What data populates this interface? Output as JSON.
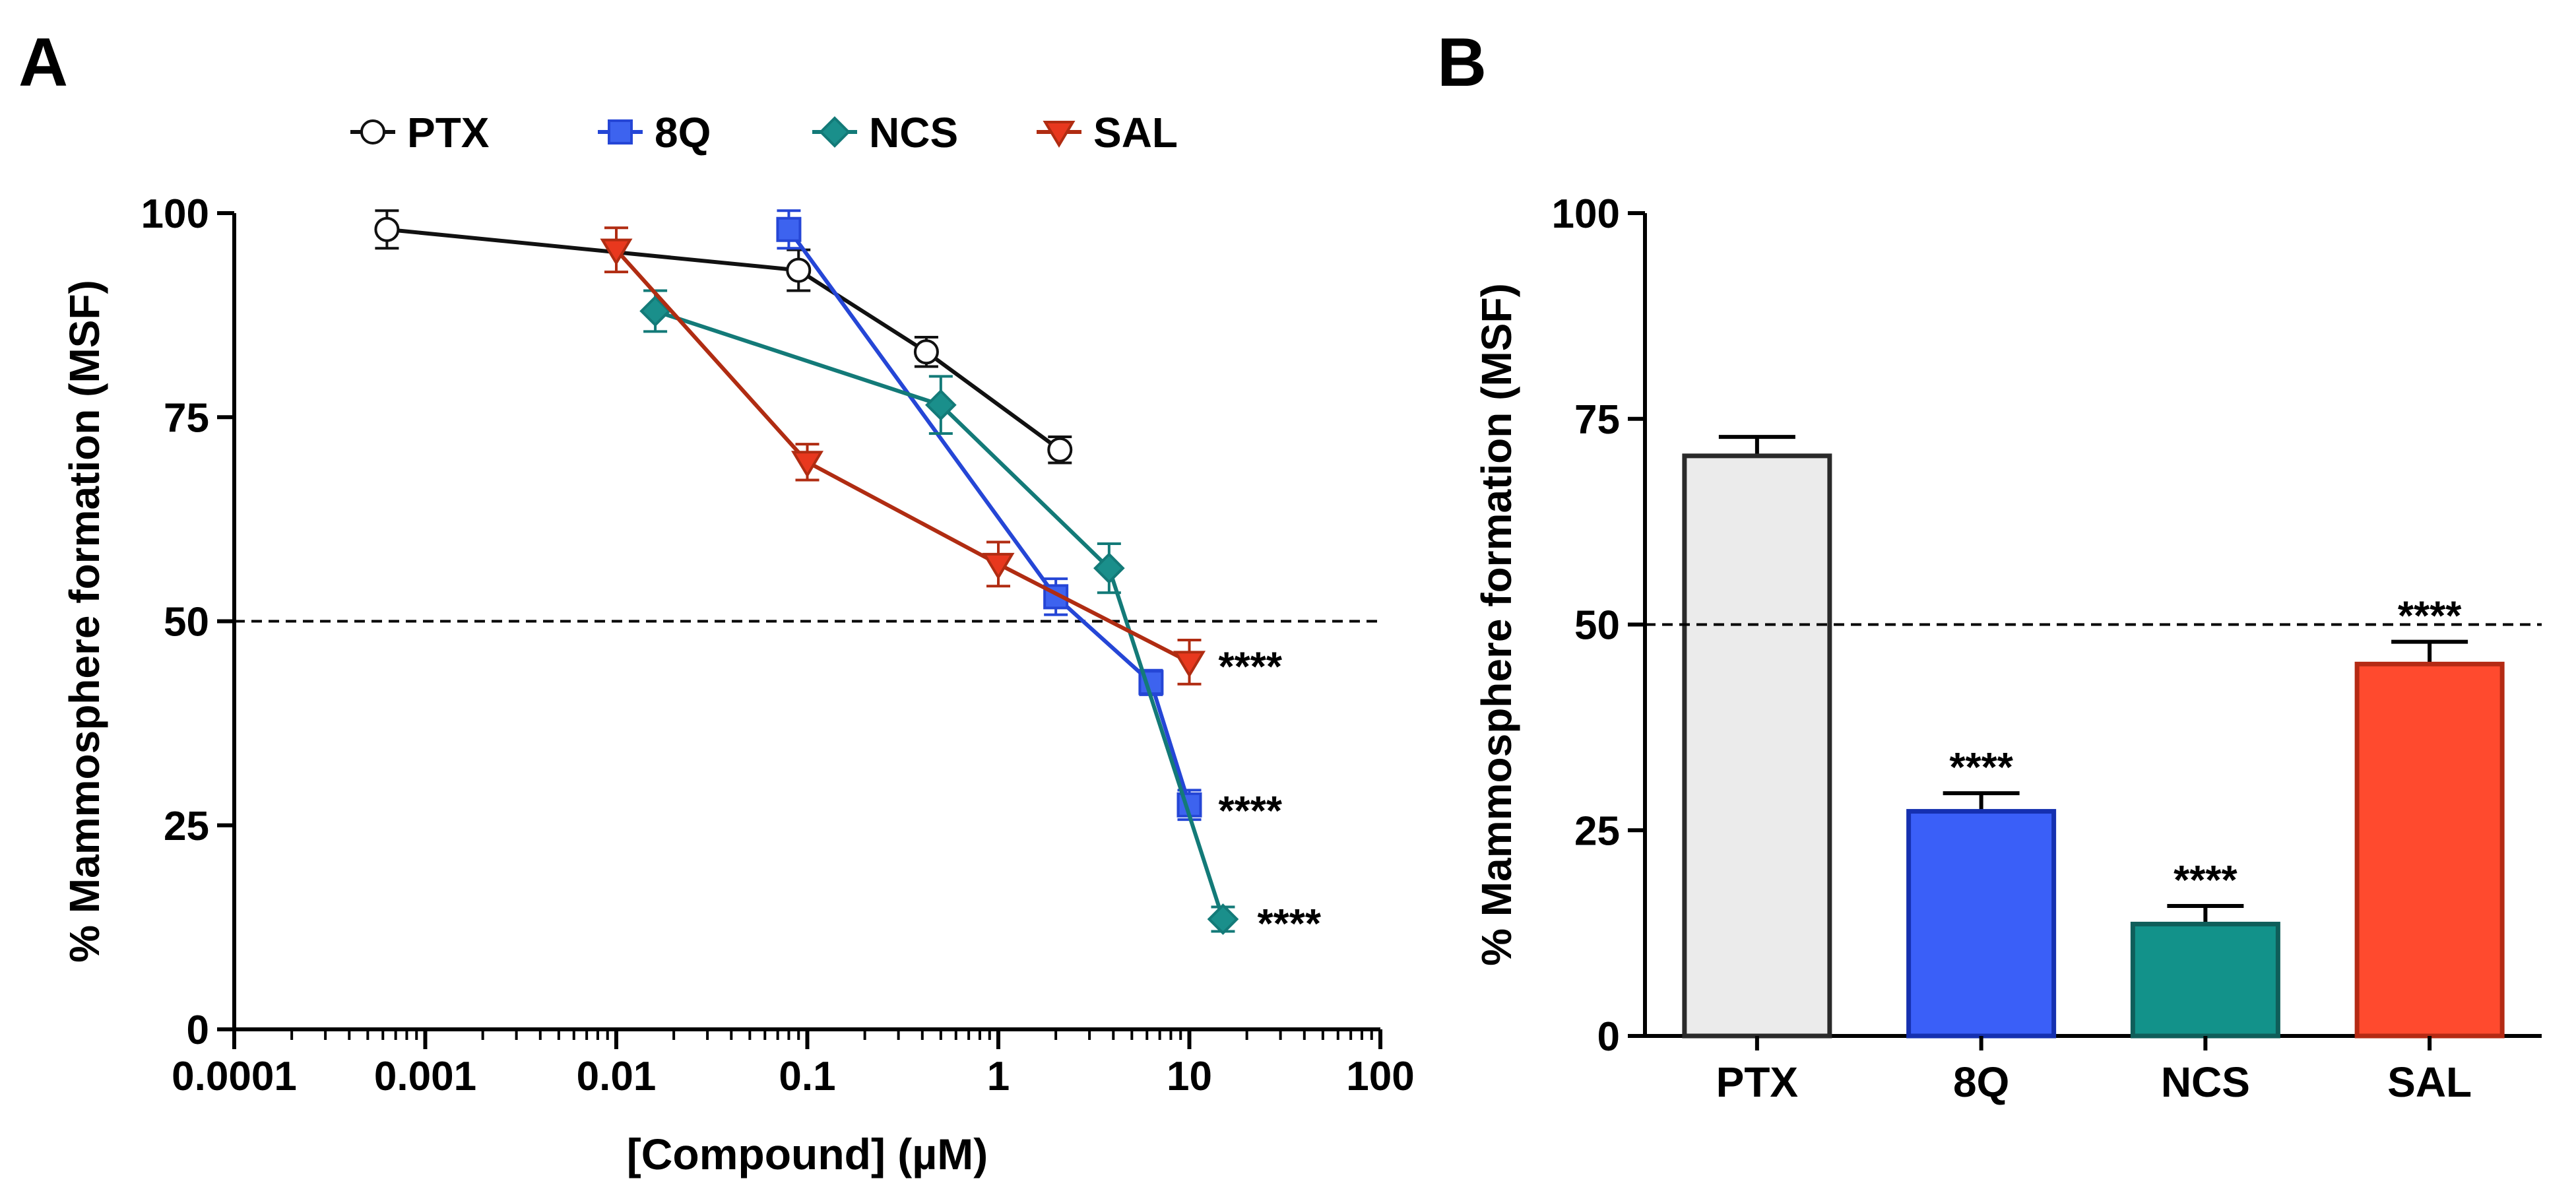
{
  "chart_data": [
    {
      "panel": "A",
      "type": "line",
      "xscale": "log",
      "xlabel": "[Compound] (µM)",
      "ylabel": "% Mammosphere formation (MSF)",
      "xlim": [
        0.0001,
        100
      ],
      "ylim": [
        0,
        100
      ],
      "xticks": [
        {
          "value": 0.0001,
          "label": "0.0001"
        },
        {
          "value": 0.001,
          "label": "0.001"
        },
        {
          "value": 0.01,
          "label": "0.01"
        },
        {
          "value": 0.1,
          "label": "0.1"
        },
        {
          "value": 1,
          "label": "1"
        },
        {
          "value": 10,
          "label": "10"
        },
        {
          "value": 100,
          "label": "100"
        }
      ],
      "yticks": [
        {
          "value": 0,
          "label": "0"
        },
        {
          "value": 25,
          "label": "25"
        },
        {
          "value": 50,
          "label": "50"
        },
        {
          "value": 75,
          "label": "75"
        },
        {
          "value": 100,
          "label": "100"
        }
      ],
      "reference_line": 50,
      "legend_position": "top",
      "series": [
        {
          "name": "PTX",
          "color": "#111111",
          "fill": "#ffffff",
          "marker": "circle",
          "x": [
            0.00063,
            0.09,
            0.42,
            2.1
          ],
          "y": [
            98,
            93,
            83,
            71
          ],
          "err": [
            2.3,
            2.5,
            1.8,
            1.6
          ]
        },
        {
          "name": "8Q",
          "color": "#2546d6",
          "fill": "#3d63ef",
          "marker": "square",
          "x": [
            0.08,
            2.0,
            6.3,
            10
          ],
          "y": [
            98,
            53,
            42.5,
            27.5
          ],
          "err": [
            2.3,
            2.2,
            1.5,
            1.8
          ]
        },
        {
          "name": "NCS",
          "color": "#137a78",
          "fill": "#1a8f8b",
          "marker": "diamond",
          "x": [
            0.016,
            0.5,
            3.8,
            15
          ],
          "y": [
            88,
            76.5,
            56.5,
            13.5
          ],
          "err": [
            2.5,
            3.5,
            3,
            1.5
          ]
        },
        {
          "name": "SAL",
          "color": "#b02c12",
          "fill": "#e8381e",
          "marker": "triangle-down",
          "x": [
            0.01,
            0.1,
            1.0,
            10
          ],
          "y": [
            95.5,
            69.5,
            57,
            45
          ],
          "err": [
            2.7,
            2.2,
            2.7,
            2.7
          ]
        }
      ],
      "annotations": [
        {
          "text": "****",
          "series": "SAL"
        },
        {
          "text": "****",
          "series": "8Q"
        },
        {
          "text": "****",
          "series": "NCS"
        }
      ]
    },
    {
      "panel": "B",
      "type": "bar",
      "ylabel": "% Mammosphere formation (MSF)",
      "ylim": [
        0,
        100
      ],
      "yticks": [
        {
          "value": 0,
          "label": "0"
        },
        {
          "value": 25,
          "label": "25"
        },
        {
          "value": 50,
          "label": "50"
        },
        {
          "value": 75,
          "label": "75"
        },
        {
          "value": 100,
          "label": "100"
        }
      ],
      "reference_line": 50,
      "categories": [
        "PTX",
        "8Q",
        "NCS",
        "SAL"
      ],
      "values": [
        70.5,
        27.3,
        13.6,
        45.2
      ],
      "errors": [
        2.3,
        2.2,
        2.2,
        2.7
      ],
      "significance": [
        "",
        "****",
        "****",
        "****"
      ],
      "fill_colors": [
        "#ebebeb",
        "#3a5ff8",
        "#12928a",
        "#ff4a2e"
      ],
      "stroke_colors": [
        "#2a2a2a",
        "#1530b0",
        "#0f5e5a",
        "#b42a14"
      ]
    }
  ]
}
